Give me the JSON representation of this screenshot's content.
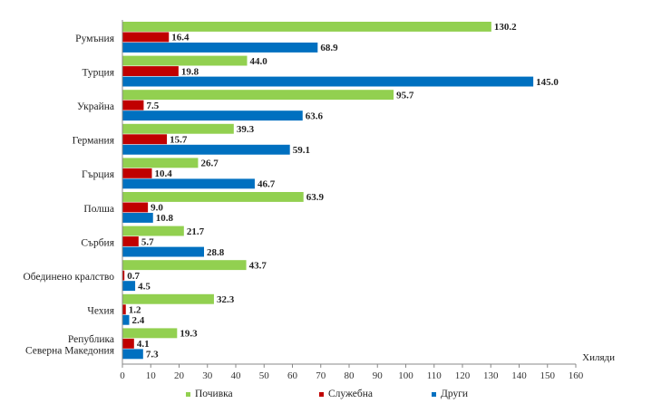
{
  "chart_data": {
    "type": "bar",
    "orientation": "horizontal",
    "title": "",
    "xlabel": "Хиляди",
    "ylabel": "",
    "xlim": [
      0,
      160
    ],
    "xticks": [
      0,
      10,
      20,
      30,
      40,
      50,
      60,
      70,
      80,
      90,
      100,
      110,
      120,
      130,
      140,
      150,
      160
    ],
    "categories": [
      [
        "Румъния"
      ],
      [
        "Турция"
      ],
      [
        "Украйна"
      ],
      [
        "Германия"
      ],
      [
        "Гърция"
      ],
      [
        "Полша"
      ],
      [
        "Сърбия"
      ],
      [
        "Обединено кралство"
      ],
      [
        "Чехия"
      ],
      [
        "Република",
        "Северна Македония"
      ]
    ],
    "series": [
      {
        "name": "Почивка",
        "color": "#92d050",
        "values": [
          130.2,
          44.0,
          95.7,
          39.3,
          26.7,
          63.9,
          21.7,
          43.7,
          32.3,
          19.3
        ],
        "labels": [
          "130.2",
          "44.0",
          "95.7",
          "39.3",
          "26.7",
          "63.9",
          "21.7",
          "43.7",
          "32.3",
          "19.3"
        ]
      },
      {
        "name": "Служебна",
        "color": "#c00000",
        "values": [
          16.4,
          19.8,
          7.5,
          15.7,
          10.4,
          9.0,
          5.7,
          0.7,
          1.2,
          4.1
        ],
        "labels": [
          "16.4",
          "19.8",
          "7.5",
          "15.7",
          "10.4",
          "9.0",
          "5.7",
          "0.7",
          "1.2",
          "4.1"
        ]
      },
      {
        "name": "Други",
        "color": "#0070c0",
        "values": [
          68.9,
          145.0,
          63.6,
          59.1,
          46.7,
          10.8,
          28.8,
          4.5,
          2.4,
          7.3
        ],
        "labels": [
          "68.9",
          "145.0",
          "63.6",
          "59.1",
          "46.7",
          "10.8",
          "28.8",
          "4.5",
          "2.4",
          "7.3"
        ]
      }
    ],
    "grid": false,
    "legend_position": "bottom"
  }
}
